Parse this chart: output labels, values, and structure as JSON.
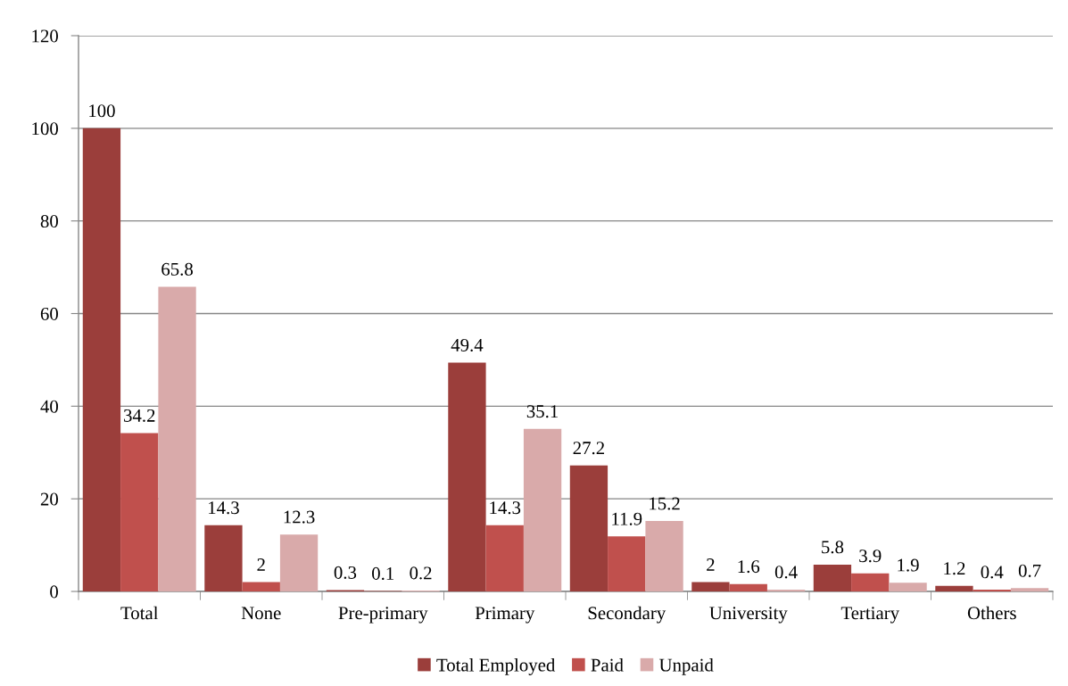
{
  "chart_data": {
    "type": "bar",
    "categories": [
      "Total",
      "None",
      "Pre-primary",
      "Primary",
      "Secondary",
      "University",
      "Tertiary",
      "Others"
    ],
    "series": [
      {
        "name": "Total Employed",
        "color": "#9b3e3b",
        "values": [
          100,
          14.3,
          0.3,
          49.4,
          27.2,
          2,
          5.8,
          1.2
        ]
      },
      {
        "name": "Paid",
        "color": "#c0504d",
        "values": [
          34.2,
          2,
          0.1,
          14.3,
          11.9,
          1.6,
          3.9,
          0.4
        ]
      },
      {
        "name": "Unpaid",
        "color": "#d9aaaa",
        "values": [
          65.8,
          12.3,
          0.2,
          35.1,
          15.2,
          0.4,
          1.9,
          0.7
        ]
      }
    ],
    "ylim": [
      0,
      120
    ],
    "yticks": [
      0,
      20,
      40,
      60,
      80,
      100,
      120
    ],
    "grid": "y",
    "legend": "bottom",
    "data_labels": true
  }
}
